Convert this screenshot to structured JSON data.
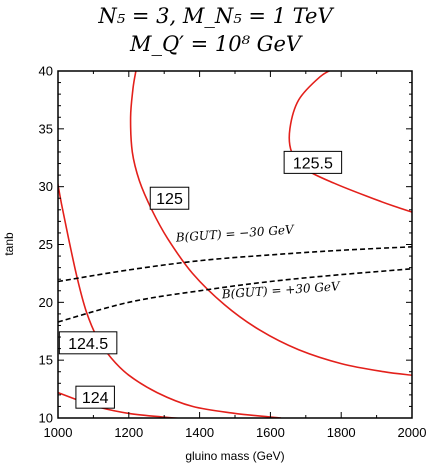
{
  "chart_data": {
    "type": "line",
    "title_line1": "N₅ = 3,  M_N₅ = 1 TeV",
    "title_line2": "M_Q′ = 10⁸ GeV",
    "xlabel": "gluino mass (GeV)",
    "ylabel": "tanb",
    "xlim": [
      1000,
      2000
    ],
    "ylim": [
      10,
      40
    ],
    "xticks": [
      1000,
      1200,
      1400,
      1600,
      1800,
      2000
    ],
    "yticks": [
      10,
      15,
      20,
      25,
      30,
      35,
      40
    ],
    "grid": false,
    "contour_color": "#e3201b",
    "contours": [
      {
        "label": "124",
        "label_at": [
          1105,
          11.8
        ],
        "x": [
          1000,
          1060,
          1120,
          1200,
          1290,
          1370
        ],
        "y": [
          12.2,
          11.5,
          10.9,
          10.4,
          10.1,
          9.9
        ]
      },
      {
        "label": "124.5",
        "label_at": [
          1085,
          16.5
        ],
        "x": [
          995,
          1010,
          1030,
          1055,
          1080,
          1110,
          1150,
          1200,
          1280,
          1380,
          1500,
          1630
        ],
        "y": [
          31.0,
          28.5,
          25.5,
          22.0,
          19.2,
          17.0,
          15.2,
          13.7,
          12.2,
          11.0,
          10.4,
          10.0
        ]
      },
      {
        "label": "125",
        "label_at": [
          1315,
          29.0
        ],
        "x": [
          1220,
          1212,
          1205,
          1210,
          1230,
          1265,
          1310,
          1380,
          1470,
          1570,
          1680,
          1800,
          1920,
          2000
        ],
        "y": [
          40.0,
          38.5,
          36.0,
          33.0,
          30.5,
          28.0,
          25.5,
          22.5,
          19.8,
          17.6,
          15.9,
          14.7,
          14.0,
          13.7
        ]
      },
      {
        "label": "125.5",
        "label_at": [
          1720,
          32.1
        ],
        "x": [
          1780,
          1740,
          1680,
          1655,
          1660,
          1700,
          1780,
          1870,
          1950,
          2000
        ],
        "y": [
          40.2,
          39.5,
          37.5,
          35.0,
          33.0,
          31.5,
          30.3,
          29.2,
          28.3,
          27.8
        ]
      }
    ],
    "dashed_lines": [
      {
        "label": "B(GUT) = −30 GeV",
        "label_at": [
          1500,
          25.6
        ],
        "x": [
          1000,
          1200,
          1400,
          1600,
          1800,
          2000
        ],
        "y": [
          21.8,
          22.8,
          23.6,
          24.1,
          24.5,
          24.8
        ]
      },
      {
        "label": "B(GUT) = +30 GeV",
        "label_at": [
          1630,
          20.7
        ],
        "x": [
          1000,
          1200,
          1400,
          1600,
          1800,
          2000
        ],
        "y": [
          18.3,
          20.0,
          21.0,
          21.8,
          22.4,
          22.9
        ]
      }
    ]
  }
}
